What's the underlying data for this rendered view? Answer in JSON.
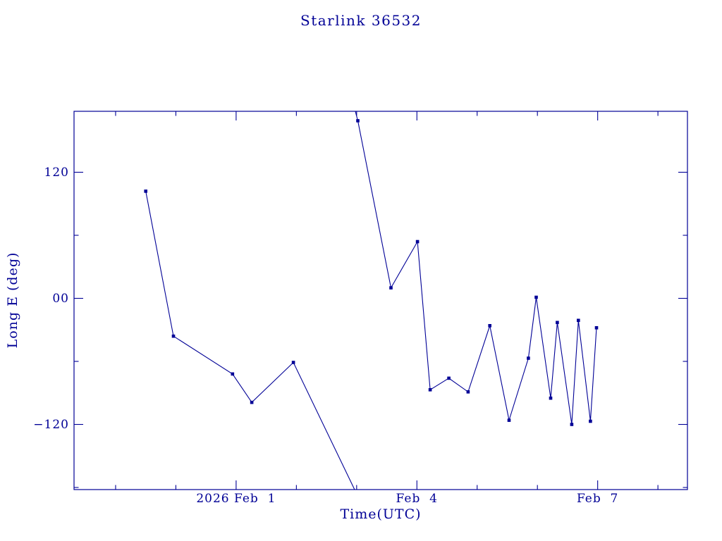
{
  "colors": {
    "plot_color": "#000096",
    "background": "#ffffff"
  },
  "chart_data": {
    "type": "line",
    "title": "Starlink 36532",
    "xlabel": "Time(UTC)",
    "ylabel": "Long E (deg)",
    "x_unit": "days relative to 2026 Feb 1 00:00 UTC",
    "xlim": [
      -2.69,
      7.49
    ],
    "ylim": [
      -182,
      178
    ],
    "grid": false,
    "legend": false,
    "marker": "filled-square",
    "x_major_ticks": [
      {
        "t": 0,
        "label": "2026 Feb  1"
      },
      {
        "t": 3,
        "label": "Feb  4"
      },
      {
        "t": 6,
        "label": "Feb  7"
      }
    ],
    "x_minor_step": 1,
    "y_major_ticks": [
      {
        "v": 120,
        "label": "120"
      },
      {
        "v": 0,
        "label": "00"
      },
      {
        "v": -120,
        "label": "−120"
      }
    ],
    "y_minor_step": 60,
    "points": [
      [
        -1.5,
        102
      ],
      [
        -1.04,
        -36
      ],
      [
        -0.06,
        -72
      ],
      [
        0.26,
        -99
      ],
      [
        0.95,
        -61
      ],
      [
        2.02,
        169
      ],
      [
        2.57,
        10
      ],
      [
        3.01,
        54
      ],
      [
        3.22,
        -87
      ],
      [
        3.53,
        -76
      ],
      [
        3.85,
        -89
      ],
      [
        4.21,
        -26
      ],
      [
        4.53,
        -116
      ],
      [
        4.85,
        -57
      ],
      [
        4.98,
        1
      ],
      [
        5.22,
        -95
      ],
      [
        5.33,
        -23
      ],
      [
        5.57,
        -120
      ],
      [
        5.68,
        -21
      ],
      [
        5.88,
        -117
      ],
      [
        5.98,
        -28
      ]
    ],
    "lines": [
      [
        [
          -1.5,
          102
        ],
        [
          -1.04,
          -36
        ],
        [
          -0.06,
          -72
        ],
        [
          0.26,
          -99
        ],
        [
          0.95,
          -61
        ],
        [
          2.0,
          -186
        ]
      ],
      [
        [
          1.96,
          182
        ],
        [
          2.02,
          169
        ],
        [
          2.57,
          10
        ],
        [
          3.01,
          54
        ],
        [
          3.22,
          -87
        ],
        [
          3.53,
          -76
        ],
        [
          3.85,
          -89
        ],
        [
          4.21,
          -26
        ],
        [
          4.53,
          -116
        ],
        [
          4.85,
          -57
        ],
        [
          4.98,
          1
        ],
        [
          5.22,
          -95
        ],
        [
          5.33,
          -23
        ],
        [
          5.57,
          -120
        ],
        [
          5.68,
          -21
        ],
        [
          5.88,
          -117
        ],
        [
          5.98,
          -28
        ]
      ]
    ]
  }
}
